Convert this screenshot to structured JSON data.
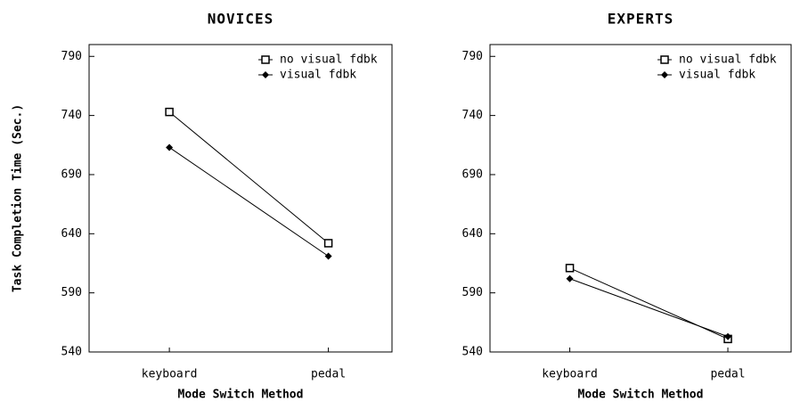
{
  "chart_data": [
    {
      "type": "line",
      "title": "NOVICES",
      "y_label": "Task Completion Time (Sec.)",
      "x_label": "Mode Switch Method",
      "categories": [
        "keyboard",
        "pedal"
      ],
      "series": [
        {
          "name": "no visual fdbk",
          "color": "#000000",
          "marker": "square",
          "values": [
            743,
            632
          ]
        },
        {
          "name": "visual fdbk",
          "color": "#000000",
          "marker": "diamond",
          "values": [
            713,
            621
          ]
        }
      ],
      "ylim": [
        540,
        800
      ],
      "yticks": [
        540,
        590,
        640,
        690,
        740,
        790
      ],
      "legend": "upper right"
    },
    {
      "type": "line",
      "title": "EXPERTS",
      "x_label": "Mode Switch Method",
      "categories": [
        "keyboard",
        "pedal"
      ],
      "series": [
        {
          "name": "no visual fdbk",
          "color": "#000000",
          "marker": "square",
          "values": [
            611,
            551
          ]
        },
        {
          "name": "visual fdbk",
          "color": "#000000",
          "marker": "diamond",
          "values": [
            602,
            553
          ]
        }
      ],
      "ylim": [
        540,
        800
      ],
      "yticks": [
        540,
        590,
        640,
        690,
        740,
        790
      ],
      "legend": "upper right"
    }
  ]
}
